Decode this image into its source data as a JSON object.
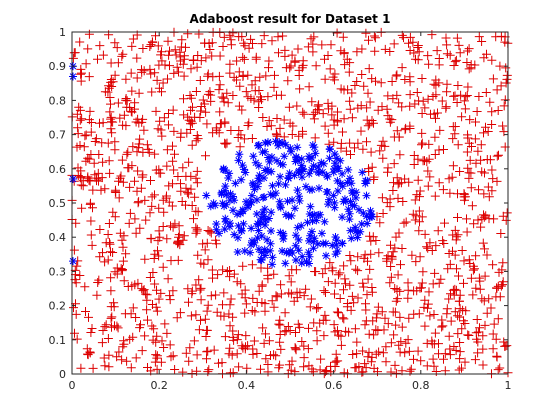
{
  "chart_data": {
    "type": "scatter",
    "title": "Adaboost result for Dataset 1",
    "xlabel": "",
    "ylabel": "",
    "xlim": [
      0,
      1
    ],
    "ylim": [
      0,
      1
    ],
    "xticks": [
      0,
      0.2,
      0.4,
      0.6,
      0.8,
      1
    ],
    "xtick_labels": [
      "0",
      "0.2",
      "0.4",
      "0.6",
      "0.8",
      "1"
    ],
    "yticks": [
      0,
      0.1,
      0.2,
      0.3,
      0.4,
      0.5,
      0.6,
      0.7,
      0.8,
      0.9,
      1
    ],
    "ytick_labels": [
      "0",
      "0.1",
      "0.2",
      "0.3",
      "0.4",
      "0.5",
      "0.6",
      "0.7",
      "0.8",
      "0.9",
      "1"
    ],
    "grid": false,
    "box": true,
    "series": [
      {
        "marker": "plus",
        "color": "#dd0000",
        "region": "outside",
        "point_count": 1500
      },
      {
        "marker": "asterisk",
        "color": "#0000ff",
        "region": "central disc",
        "approx_center": [
          0.5,
          0.5
        ],
        "approx_radius": 0.2,
        "point_count": 300
      }
    ]
  }
}
